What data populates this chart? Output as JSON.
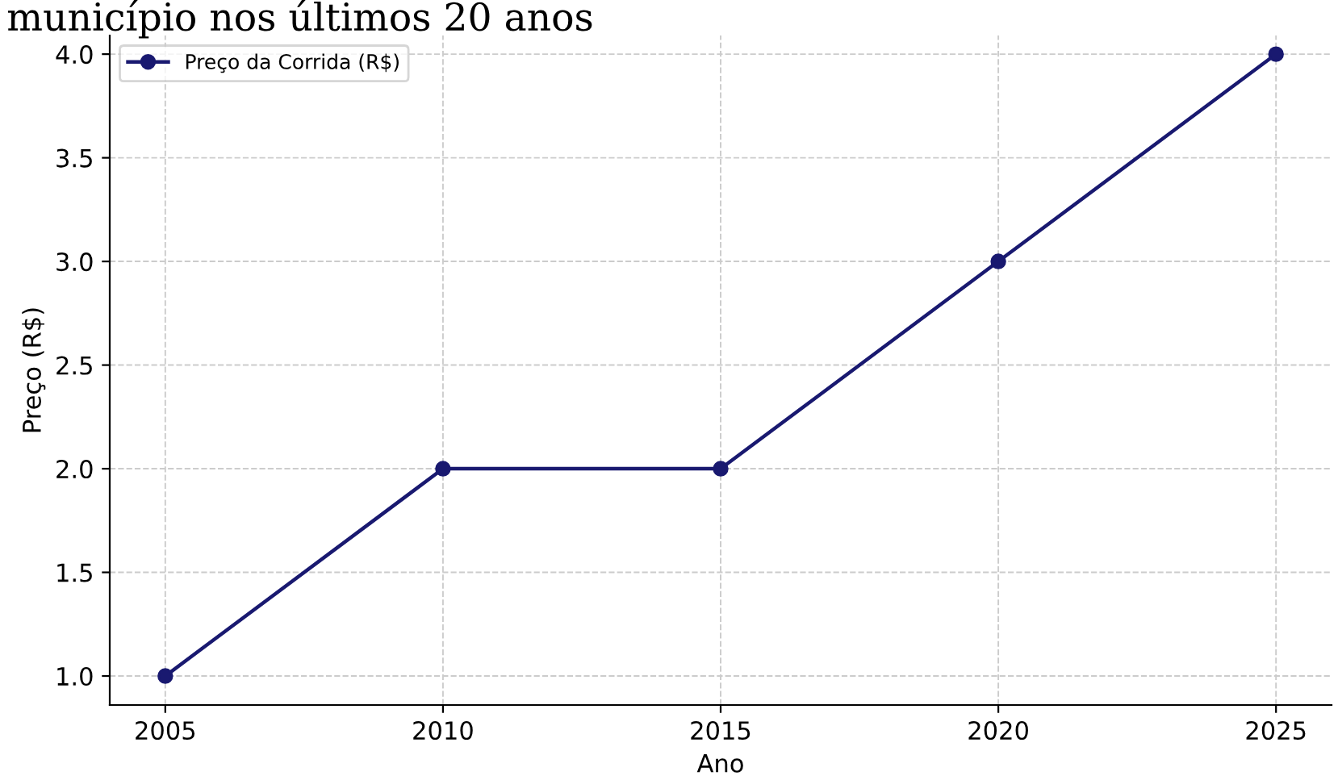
{
  "chart_data": {
    "type": "line",
    "title": "município nos últimos 20 anos",
    "xlabel": "Ano",
    "ylabel": "Preço (R$)",
    "x": [
      2005,
      2010,
      2015,
      2020,
      2025
    ],
    "series": [
      {
        "name": "Preço da Corrida (R$)",
        "color": "#191970",
        "values": [
          1.0,
          2.0,
          2.0,
          3.0,
          4.0
        ]
      }
    ],
    "xlim": [
      2004,
      2026
    ],
    "xticks": [
      2005,
      2010,
      2015,
      2020,
      2025
    ],
    "ylim": [
      0.86,
      4.09
    ],
    "yticks": [
      {
        "value": 1.0,
        "label": "1.0"
      },
      {
        "value": 1.5,
        "label": "1.5"
      },
      {
        "value": 2.0,
        "label": "2.0"
      },
      {
        "value": 2.5,
        "label": "2.5"
      },
      {
        "value": 3.0,
        "label": "3.0"
      },
      {
        "value": 3.5,
        "label": "3.5"
      },
      {
        "value": 4.0,
        "label": "4.0"
      }
    ],
    "grid": true,
    "legend": "top left",
    "marker": "circle",
    "line_style": "solid"
  }
}
